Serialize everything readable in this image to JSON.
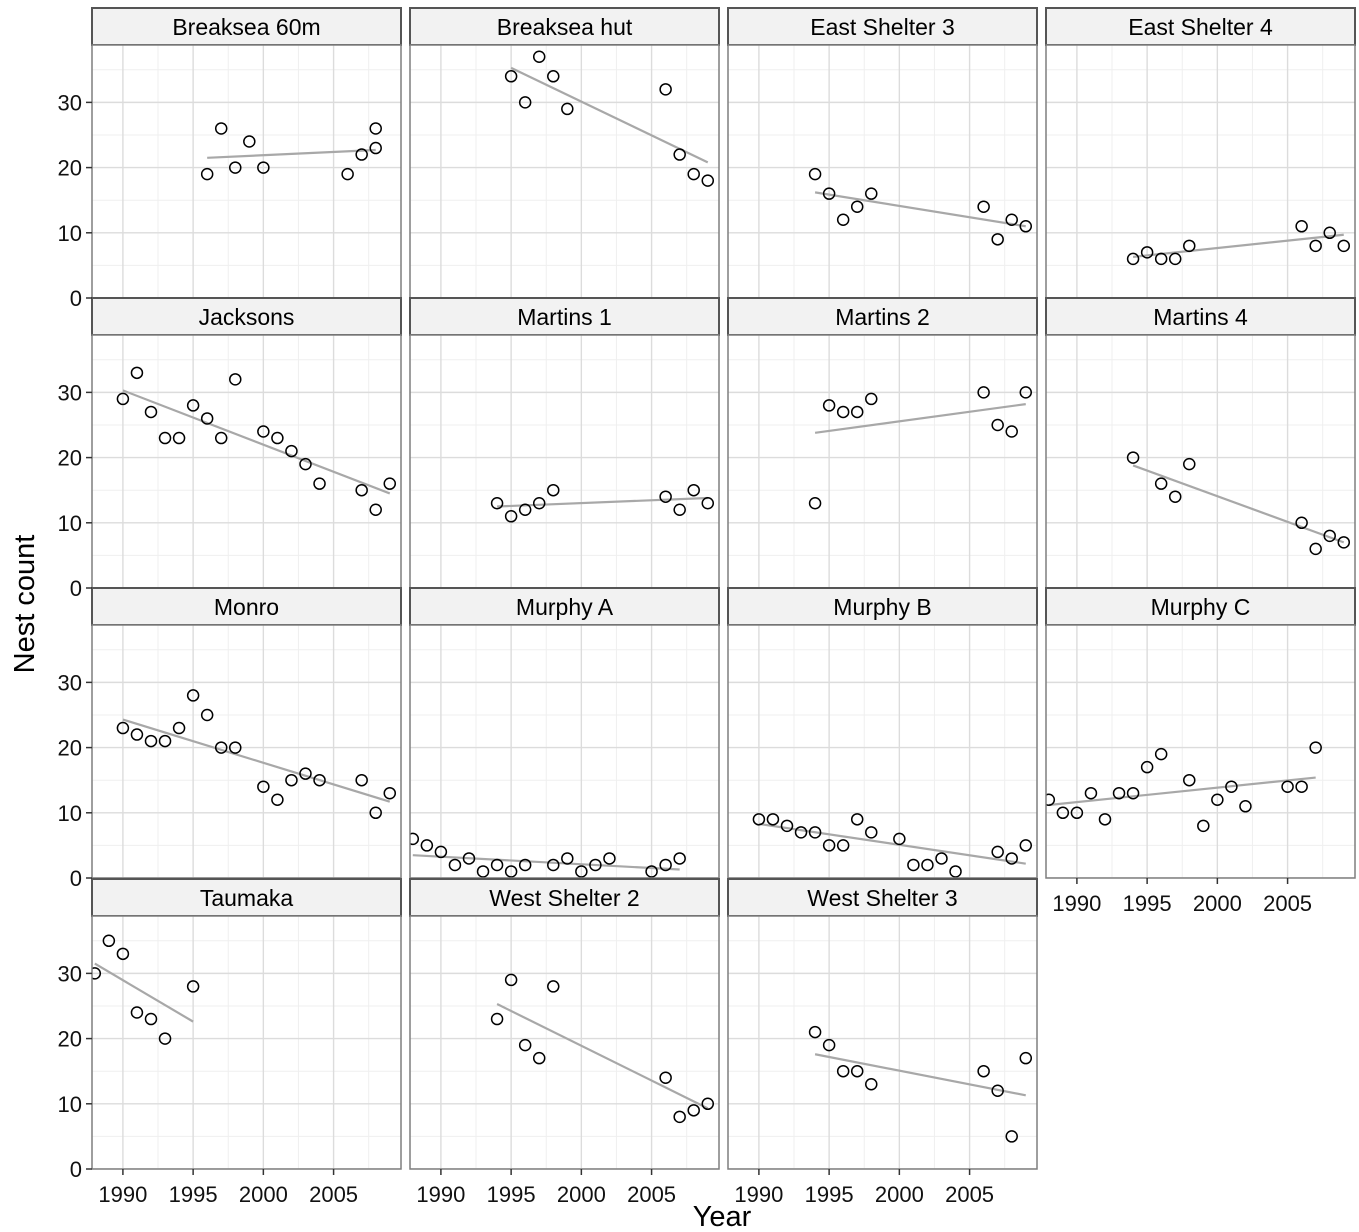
{
  "chart_data": {
    "type": "scatter",
    "facet": "wrap",
    "xlabel": "Year",
    "ylabel": "Nest count",
    "xlim": [
      1987.8,
      2009.8
    ],
    "ylim": [
      0,
      38.8
    ],
    "x_ticks": [
      1990,
      1995,
      2000,
      2005
    ],
    "y_ticks": [
      0,
      10,
      20,
      30
    ],
    "grid": true,
    "colors": {
      "panel_background": "#ffffff",
      "grid_major": "#dcdcdc",
      "grid_minor": "#efefef",
      "panel_border": "#7f7f7f",
      "strip_fill": "#f2f2f2",
      "strip_border": "#555555",
      "trend_line": "#a8a8a8",
      "point_stroke": "#000000"
    },
    "panels": [
      {
        "name": "Breaksea 60m",
        "points": [
          [
            1996,
            19
          ],
          [
            1997,
            26
          ],
          [
            1998,
            20
          ],
          [
            1999,
            24
          ],
          [
            2000,
            20
          ],
          [
            2006,
            19
          ],
          [
            2007,
            22
          ],
          [
            2008,
            26
          ],
          [
            2008,
            23
          ]
        ],
        "trend": [
          [
            1996,
            21.5
          ],
          [
            2008,
            22.7
          ]
        ]
      },
      {
        "name": "Breaksea hut",
        "points": [
          [
            1995,
            34
          ],
          [
            1996,
            30
          ],
          [
            1997,
            37
          ],
          [
            1998,
            34
          ],
          [
            1999,
            29
          ],
          [
            2006,
            32
          ],
          [
            2007,
            22
          ],
          [
            2008,
            19
          ],
          [
            2009,
            18
          ]
        ],
        "trend": [
          [
            1995,
            35.3
          ],
          [
            2009,
            20.8
          ]
        ]
      },
      {
        "name": "East Shelter 3",
        "points": [
          [
            1994,
            19
          ],
          [
            1995,
            16
          ],
          [
            1996,
            12
          ],
          [
            1997,
            14
          ],
          [
            1998,
            16
          ],
          [
            2006,
            14
          ],
          [
            2007,
            9
          ],
          [
            2008,
            12
          ],
          [
            2009,
            11
          ]
        ],
        "trend": [
          [
            1994,
            16.2
          ],
          [
            2009,
            11
          ]
        ]
      },
      {
        "name": "East Shelter 4",
        "points": [
          [
            1994,
            6
          ],
          [
            1995,
            7
          ],
          [
            1996,
            6
          ],
          [
            1997,
            6
          ],
          [
            1998,
            8
          ],
          [
            2006,
            11
          ],
          [
            2007,
            8
          ],
          [
            2008,
            10
          ],
          [
            2009,
            8
          ]
        ],
        "trend": [
          [
            1994,
            6.3
          ],
          [
            2009,
            9.7
          ]
        ]
      },
      {
        "name": "Jacksons",
        "points": [
          [
            1990,
            29
          ],
          [
            1991,
            33
          ],
          [
            1992,
            27
          ],
          [
            1993,
            23
          ],
          [
            1994,
            23
          ],
          [
            1995,
            28
          ],
          [
            1996,
            26
          ],
          [
            1997,
            23
          ],
          [
            1998,
            32
          ],
          [
            2000,
            24
          ],
          [
            2001,
            23
          ],
          [
            2002,
            21
          ],
          [
            2003,
            19
          ],
          [
            2004,
            16
          ],
          [
            2007,
            15
          ],
          [
            2008,
            12
          ],
          [
            2009,
            16
          ]
        ],
        "trend": [
          [
            1990,
            30.3
          ],
          [
            2009,
            14.5
          ]
        ]
      },
      {
        "name": "Martins 1",
        "points": [
          [
            1994,
            13
          ],
          [
            1995,
            11
          ],
          [
            1996,
            12
          ],
          [
            1997,
            13
          ],
          [
            1998,
            15
          ],
          [
            2006,
            14
          ],
          [
            2007,
            12
          ],
          [
            2008,
            15
          ],
          [
            2009,
            13
          ]
        ],
        "trend": [
          [
            1994,
            12.5
          ],
          [
            2009,
            13.8
          ]
        ]
      },
      {
        "name": "Martins 2",
        "points": [
          [
            1994,
            13
          ],
          [
            1995,
            28
          ],
          [
            1996,
            27
          ],
          [
            1997,
            27
          ],
          [
            1998,
            29
          ],
          [
            2006,
            30
          ],
          [
            2007,
            25
          ],
          [
            2008,
            24
          ],
          [
            2009,
            30
          ]
        ],
        "trend": [
          [
            1994,
            23.8
          ],
          [
            2009,
            28.2
          ]
        ]
      },
      {
        "name": "Martins 4",
        "points": [
          [
            1994,
            20
          ],
          [
            1996,
            16
          ],
          [
            1997,
            14
          ],
          [
            1998,
            19
          ],
          [
            2006,
            10
          ],
          [
            2007,
            6
          ],
          [
            2008,
            8
          ],
          [
            2009,
            7
          ]
        ],
        "trend": [
          [
            1994,
            18.8
          ],
          [
            2009,
            7
          ]
        ]
      },
      {
        "name": "Monro",
        "points": [
          [
            1990,
            23
          ],
          [
            1991,
            22
          ],
          [
            1992,
            21
          ],
          [
            1993,
            21
          ],
          [
            1994,
            23
          ],
          [
            1995,
            28
          ],
          [
            1996,
            25
          ],
          [
            1997,
            20
          ],
          [
            1998,
            20
          ],
          [
            2000,
            14
          ],
          [
            2001,
            12
          ],
          [
            2002,
            15
          ],
          [
            2003,
            16
          ],
          [
            2004,
            15
          ],
          [
            2007,
            15
          ],
          [
            2008,
            10
          ],
          [
            2009,
            13
          ]
        ],
        "trend": [
          [
            1990,
            24.3
          ],
          [
            2009,
            11.7
          ]
        ]
      },
      {
        "name": "Murphy A",
        "points": [
          [
            1988,
            6
          ],
          [
            1989,
            5
          ],
          [
            1990,
            4
          ],
          [
            1991,
            2
          ],
          [
            1992,
            3
          ],
          [
            1993,
            1
          ],
          [
            1994,
            2
          ],
          [
            1995,
            1
          ],
          [
            1996,
            2
          ],
          [
            1998,
            2
          ],
          [
            1999,
            3
          ],
          [
            2000,
            1
          ],
          [
            2001,
            2
          ],
          [
            2002,
            3
          ],
          [
            2005,
            1
          ],
          [
            2006,
            2
          ],
          [
            2007,
            3
          ]
        ],
        "trend": [
          [
            1988,
            3.5
          ],
          [
            2007,
            1.3
          ]
        ]
      },
      {
        "name": "Murphy B",
        "points": [
          [
            1990,
            9
          ],
          [
            1991,
            9
          ],
          [
            1992,
            8
          ],
          [
            1993,
            7
          ],
          [
            1994,
            7
          ],
          [
            1995,
            5
          ],
          [
            1996,
            5
          ],
          [
            1997,
            9
          ],
          [
            1998,
            7
          ],
          [
            2000,
            6
          ],
          [
            2001,
            2
          ],
          [
            2002,
            2
          ],
          [
            2003,
            3
          ],
          [
            2004,
            1
          ],
          [
            2007,
            4
          ],
          [
            2008,
            3
          ],
          [
            2009,
            5
          ]
        ],
        "trend": [
          [
            1990,
            8.3
          ],
          [
            2009,
            2.2
          ]
        ]
      },
      {
        "name": "Murphy C",
        "points": [
          [
            1988,
            12
          ],
          [
            1989,
            10
          ],
          [
            1990,
            10
          ],
          [
            1991,
            13
          ],
          [
            1992,
            9
          ],
          [
            1993,
            13
          ],
          [
            1994,
            13
          ],
          [
            1995,
            17
          ],
          [
            1996,
            19
          ],
          [
            1998,
            15
          ],
          [
            1999,
            8
          ],
          [
            2000,
            12
          ],
          [
            2001,
            14
          ],
          [
            2002,
            11
          ],
          [
            2005,
            14
          ],
          [
            2006,
            14
          ],
          [
            2007,
            20
          ]
        ],
        "trend": [
          [
            1988,
            11.2
          ],
          [
            2007,
            15.4
          ]
        ]
      },
      {
        "name": "Taumaka",
        "points": [
          [
            1988,
            30
          ],
          [
            1989,
            35
          ],
          [
            1990,
            33
          ],
          [
            1991,
            24
          ],
          [
            1992,
            23
          ],
          [
            1993,
            20
          ],
          [
            1995,
            28
          ]
        ],
        "trend": [
          [
            1988,
            31.5
          ],
          [
            1995,
            22.6
          ]
        ]
      },
      {
        "name": "West Shelter 2",
        "points": [
          [
            1994,
            23
          ],
          [
            1995,
            29
          ],
          [
            1996,
            19
          ],
          [
            1997,
            17
          ],
          [
            1998,
            28
          ],
          [
            2006,
            14
          ],
          [
            2007,
            8
          ],
          [
            2008,
            9
          ],
          [
            2009,
            10
          ]
        ],
        "trend": [
          [
            1994,
            25.3
          ],
          [
            2009,
            9.3
          ]
        ]
      },
      {
        "name": "West Shelter 3",
        "points": [
          [
            1994,
            21
          ],
          [
            1995,
            19
          ],
          [
            1996,
            15
          ],
          [
            1997,
            15
          ],
          [
            1998,
            13
          ],
          [
            2006,
            15
          ],
          [
            2007,
            12
          ],
          [
            2008,
            5
          ],
          [
            2009,
            17
          ]
        ],
        "trend": [
          [
            1994,
            17.6
          ],
          [
            2009,
            11.3
          ]
        ]
      }
    ]
  }
}
